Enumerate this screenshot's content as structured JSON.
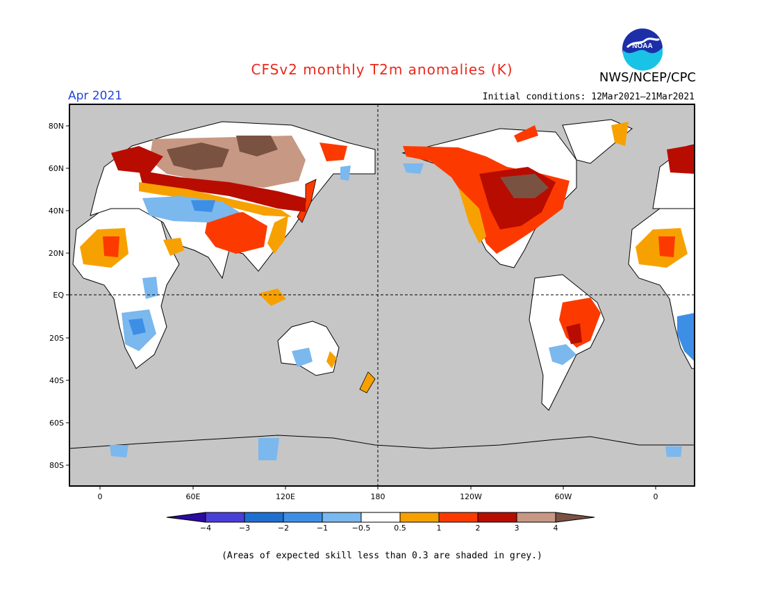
{
  "header": {
    "title": "CFSv2 monthly T2m anomalies (K)",
    "valid_month": "Apr 2021",
    "initial_conditions": "Initial conditions: 12Mar2021–21Mar2021",
    "agency": "NWS/NCEP/CPC",
    "logo_text": "NOAA"
  },
  "map": {
    "lon_labels": [
      "0",
      "60E",
      "120E",
      "180",
      "120W",
      "60W",
      "0"
    ],
    "lat_labels": [
      "80N",
      "60N",
      "40N",
      "20N",
      "EQ",
      "20S",
      "40S",
      "60S",
      "80S"
    ],
    "background_color": "#c6c6c6"
  },
  "colorbar": {
    "labels": [
      "−4",
      "−3",
      "−2",
      "−1",
      "−0.5",
      "0.5",
      "1",
      "2",
      "3",
      "4"
    ],
    "colors": [
      "#2b0aa0",
      "#4a3ed8",
      "#1f6fd1",
      "#3d8fe6",
      "#7ab8ee",
      "#ffffff",
      "#f7a100",
      "#fc3a00",
      "#b80c00",
      "#c79884",
      "#7a5242"
    ]
  },
  "footnote": "(Areas of expected skill less than 0.3 are shaded in grey.)"
}
